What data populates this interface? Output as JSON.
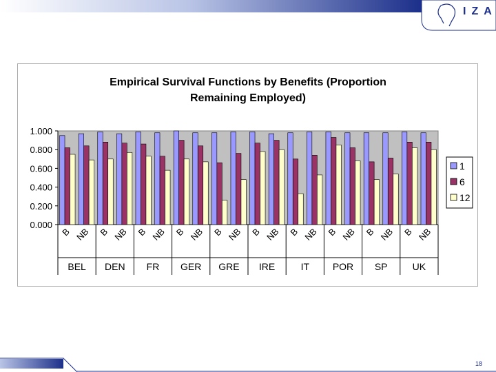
{
  "header": {
    "logo_text": "IZA"
  },
  "footer": {
    "page_number": "18"
  },
  "chart_data": {
    "type": "bar",
    "title_lines": [
      "Empirical Survival Functions by Benefits (Proportion",
      "Remaining Employed)"
    ],
    "countries": [
      "BEL",
      "DEN",
      "FR",
      "GER",
      "GRE",
      "IRE",
      "IT",
      "POR",
      "SP",
      "UK"
    ],
    "subcategories": [
      "B",
      "NB"
    ],
    "categories": [
      "BEL-B",
      "BEL-NB",
      "DEN-B",
      "DEN-NB",
      "FR-B",
      "FR-NB",
      "GER-B",
      "GER-NB",
      "GRE-B",
      "GRE-NB",
      "IRE-B",
      "IRE-NB",
      "IT-B",
      "IT-NB",
      "POR-B",
      "POR-NB",
      "SP-B",
      "SP-NB",
      "UK-B",
      "UK-NB"
    ],
    "series": [
      {
        "name": "1",
        "color": "#9999ff",
        "values": [
          0.95,
          0.97,
          0.99,
          0.97,
          0.99,
          0.98,
          1.0,
          0.98,
          0.98,
          0.99,
          0.99,
          0.97,
          0.98,
          0.99,
          0.99,
          0.98,
          0.98,
          0.98,
          0.99,
          0.98
        ]
      },
      {
        "name": "6",
        "color": "#993366",
        "values": [
          0.82,
          0.84,
          0.88,
          0.87,
          0.86,
          0.73,
          0.9,
          0.84,
          0.66,
          0.76,
          0.87,
          0.9,
          0.7,
          0.74,
          0.93,
          0.82,
          0.67,
          0.71,
          0.88,
          0.88
        ]
      },
      {
        "name": "12",
        "color": "#ffffcc",
        "values": [
          0.75,
          0.69,
          0.7,
          0.77,
          0.73,
          0.58,
          0.7,
          0.67,
          0.26,
          0.48,
          0.78,
          0.8,
          0.33,
          0.53,
          0.85,
          0.68,
          0.48,
          0.54,
          0.82,
          0.8
        ]
      }
    ],
    "ylim": [
      0,
      1
    ],
    "yticks": [
      "0.000",
      "0.200",
      "0.400",
      "0.600",
      "0.800",
      "1.000"
    ],
    "plot_background": "#c0c0c0",
    "legend_position": "right"
  }
}
